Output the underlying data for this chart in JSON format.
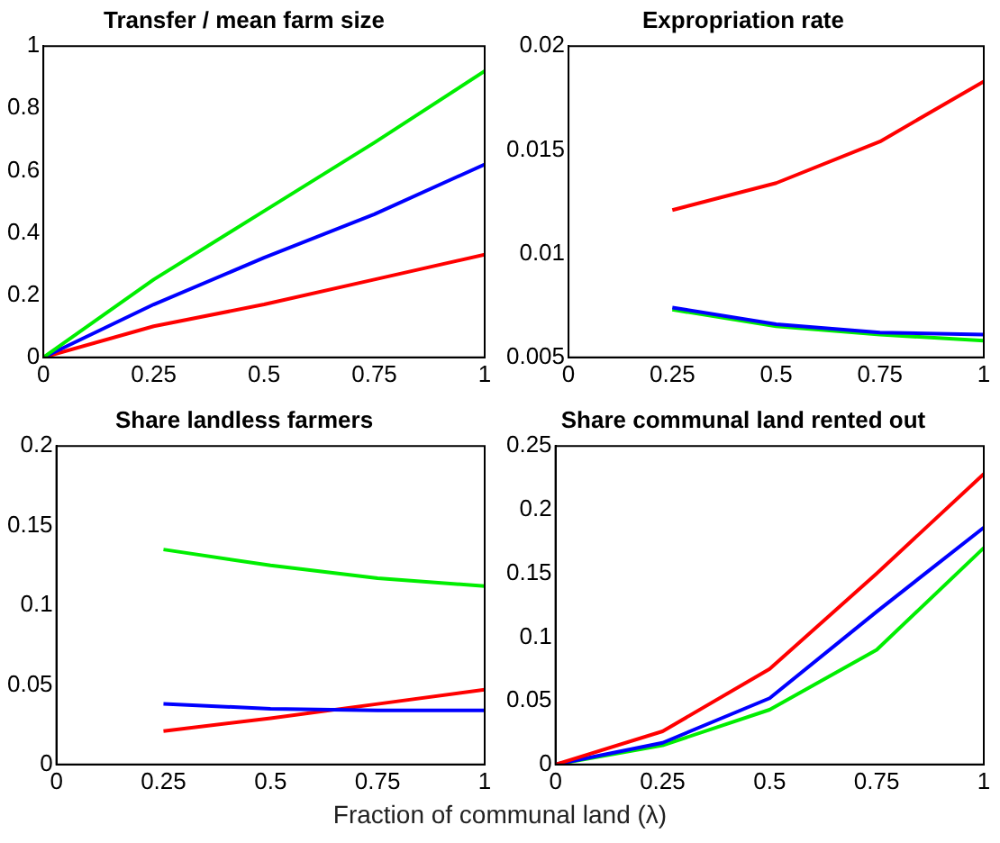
{
  "chart_data": [
    {
      "type": "line",
      "title": "Transfer / mean farm size",
      "x": [
        0,
        0.25,
        0.5,
        0.75,
        1
      ],
      "xlim": [
        0,
        1
      ],
      "xticks": [
        0,
        0.25,
        0.5,
        0.75,
        1
      ],
      "ylim": [
        0,
        1
      ],
      "yticks": [
        0,
        0.2,
        0.4,
        0.6,
        0.8,
        1
      ],
      "grid": false,
      "legend": false,
      "series": [
        {
          "color": "#00ee00",
          "values": [
            0,
            0.25,
            0.47,
            0.69,
            0.92
          ]
        },
        {
          "color": "#0000ff",
          "values": [
            0,
            0.17,
            0.32,
            0.46,
            0.62
          ]
        },
        {
          "color": "#ff0000",
          "values": [
            0,
            0.1,
            0.17,
            0.25,
            0.33
          ]
        }
      ]
    },
    {
      "type": "line",
      "title": "Expropriation rate",
      "x": [
        0.25,
        0.5,
        0.75,
        1
      ],
      "xlim": [
        0,
        1
      ],
      "xticks": [
        0,
        0.25,
        0.5,
        0.75,
        1
      ],
      "ylim": [
        0.005,
        0.02
      ],
      "yticks": [
        0.005,
        0.01,
        0.015,
        0.02
      ],
      "grid": false,
      "legend": false,
      "series": [
        {
          "color": "#ff0000",
          "values": [
            0.0121,
            0.0134,
            0.0154,
            0.0183
          ]
        },
        {
          "color": "#0000ff",
          "values": [
            0.0074,
            0.0066,
            0.0062,
            0.0061
          ]
        },
        {
          "color": "#00ee00",
          "values": [
            0.0073,
            0.0065,
            0.0061,
            0.0058
          ]
        }
      ]
    },
    {
      "type": "line",
      "title": "Share landless farmers",
      "x": [
        0.25,
        0.5,
        0.75,
        1
      ],
      "xlim": [
        0,
        1
      ],
      "xticks": [
        0,
        0.25,
        0.5,
        0.75,
        1
      ],
      "ylim": [
        0,
        0.2
      ],
      "yticks": [
        0,
        0.05,
        0.1,
        0.15,
        0.2
      ],
      "grid": false,
      "legend": false,
      "xlabel": "Fraction of communal land (λ)",
      "series": [
        {
          "color": "#00ee00",
          "values": [
            0.135,
            0.125,
            0.117,
            0.112
          ]
        },
        {
          "color": "#0000ff",
          "values": [
            0.038,
            0.035,
            0.034,
            0.034
          ]
        },
        {
          "color": "#ff0000",
          "values": [
            0.021,
            0.029,
            0.038,
            0.047
          ]
        }
      ]
    },
    {
      "type": "line",
      "title": "Share communal land rented out",
      "x": [
        0,
        0.25,
        0.5,
        0.75,
        1
      ],
      "xlim": [
        0,
        1
      ],
      "xticks": [
        0,
        0.25,
        0.5,
        0.75,
        1
      ],
      "ylim": [
        0,
        0.25
      ],
      "yticks": [
        0,
        0.05,
        0.1,
        0.15,
        0.2,
        0.25
      ],
      "grid": false,
      "legend": false,
      "series": [
        {
          "color": "#ff0000",
          "values": [
            0,
            0.026,
            0.075,
            0.15,
            0.228
          ]
        },
        {
          "color": "#0000ff",
          "values": [
            0,
            0.017,
            0.052,
            0.12,
            0.186
          ]
        },
        {
          "color": "#00ee00",
          "values": [
            0,
            0.015,
            0.043,
            0.09,
            0.17
          ]
        }
      ]
    }
  ]
}
